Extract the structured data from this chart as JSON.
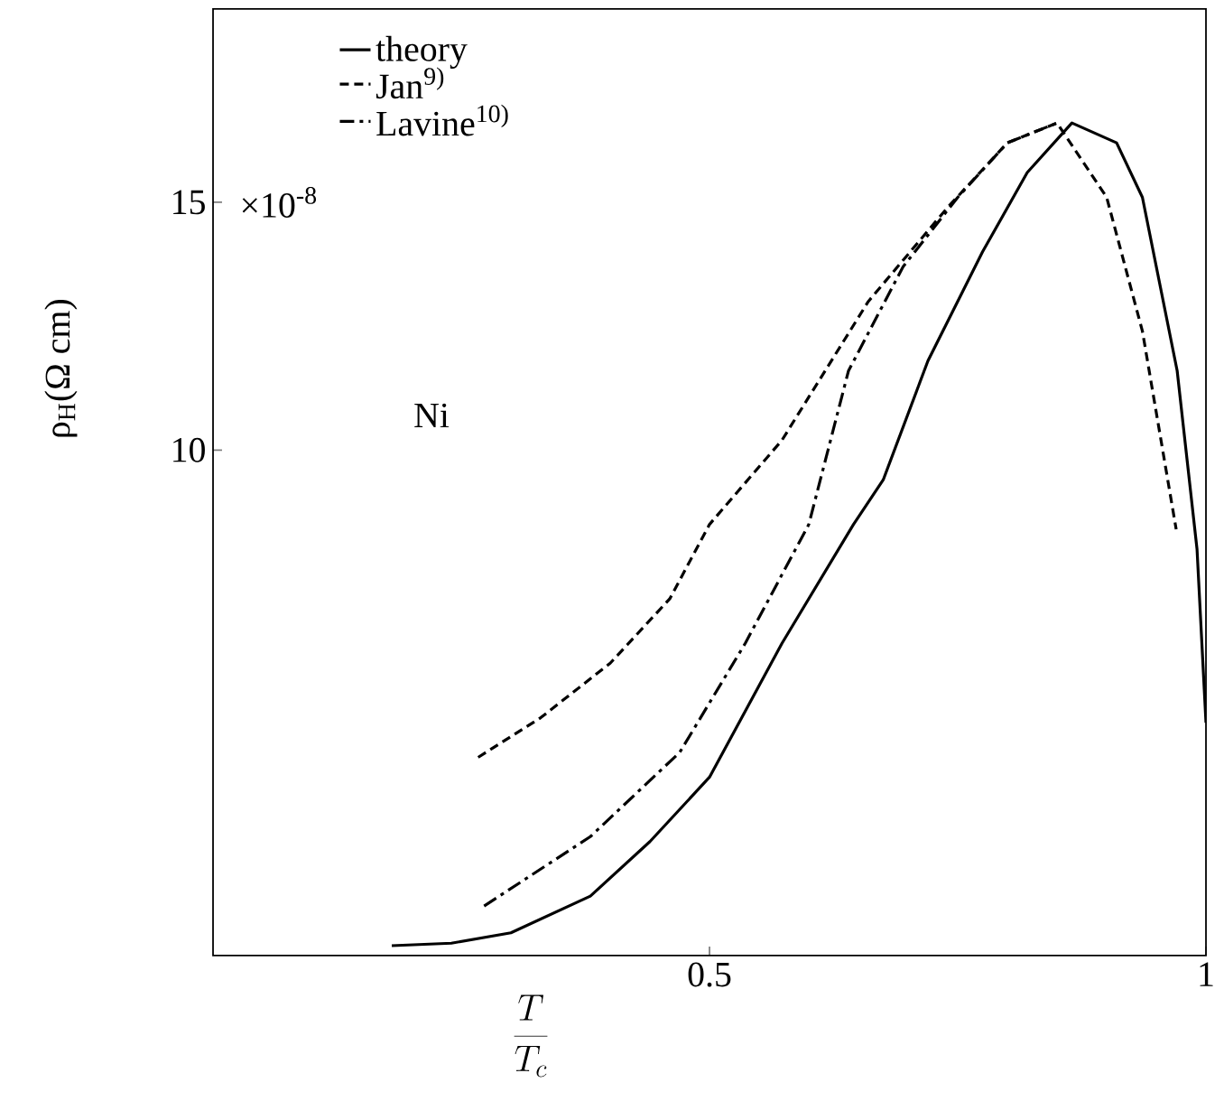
{
  "chart_data": {
    "type": "line",
    "xlabel": "\\frac{T}{T_c}",
    "ylabel": "ρ$_{H}$(Ω cm)",
    "xlim": [
      0,
      1
    ],
    "ylim": [
      -0.2,
      18.9
    ],
    "xticks": [
      0.5,
      1
    ],
    "yticks": [
      10,
      15
    ],
    "legend": "top left",
    "grid": false,
    "marker": "none",
    "annotations": [
      "×10$^{-8}$",
      "Ni"
    ],
    "series": [
      {
        "name": "theory",
        "color": "#000000",
        "line_style": "solid",
        "x": [
          0.18,
          0.24,
          0.3,
          0.38,
          0.44,
          0.5,
          0.573,
          0.645,
          0.675,
          0.72,
          0.775,
          0.82,
          0.865,
          0.91,
          0.936,
          0.971,
          0.991,
          1.0
        ],
        "values": [
          0,
          0.05,
          0.26,
          1.0,
          2.1,
          3.4,
          6.1,
          8.5,
          9.4,
          11.8,
          14.0,
          15.6,
          16.6,
          16.2,
          15.1,
          11.6,
          8.0,
          4.5
        ]
      },
      {
        "name": "Jan$^{9)}$",
        "color": "#000000",
        "line_style": "dashed",
        "x": [
          0.267,
          0.33,
          0.4,
          0.46,
          0.5,
          0.573,
          0.66,
          0.74,
          0.8,
          0.85,
          0.9,
          0.936,
          0.97
        ],
        "values": [
          3.8,
          4.6,
          5.7,
          7.0,
          8.5,
          10.2,
          13.0,
          14.9,
          16.2,
          16.6,
          15.1,
          12.4,
          8.4
        ]
      },
      {
        "name": "Lavine$^{10)}$",
        "color": "#000000",
        "line_style": "dashdot",
        "x": [
          0.273,
          0.38,
          0.47,
          0.536,
          0.6,
          0.64,
          0.695,
          0.75,
          0.8,
          0.85
        ],
        "values": [
          0.8,
          2.2,
          3.9,
          6.1,
          8.5,
          11.6,
          13.7,
          15.1,
          16.2,
          16.6
        ]
      }
    ]
  }
}
